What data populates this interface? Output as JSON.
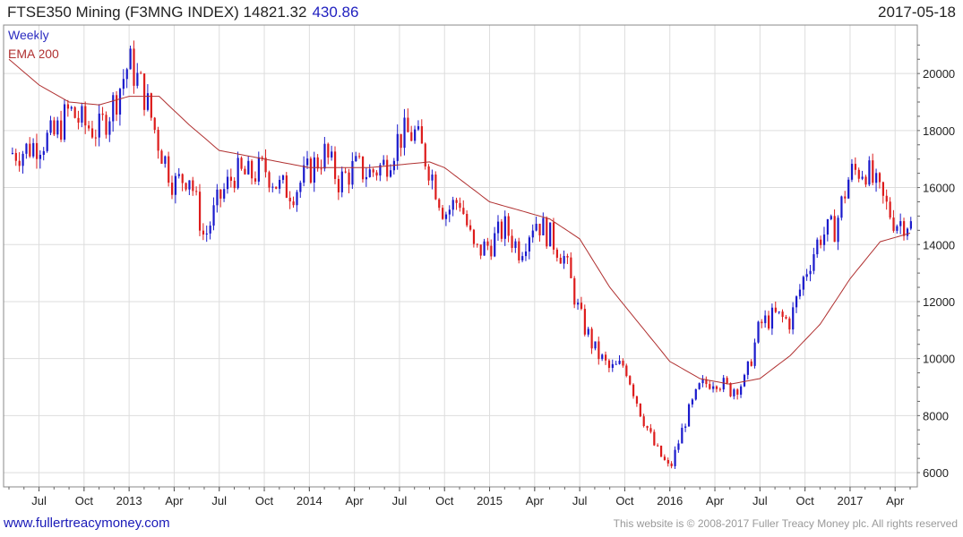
{
  "header": {
    "title": "FTSE350 Mining (F3MNG INDEX) 14821.32",
    "change": "430.86",
    "date": "2017-05-18"
  },
  "legend": [
    {
      "label": "Weekly",
      "color": "#2b2bc0"
    },
    {
      "label": "EMA 200",
      "color": "#b03030"
    }
  ],
  "footer": {
    "site": "www.fullertreacymoney.com",
    "copyright": "This website is © 2008-2017 Fuller Treacy Money plc. All rights reserved"
  },
  "colors": {
    "up": "#1a1acc",
    "down": "#dd1c1c",
    "ema": "#b03030",
    "grid": "#dddddd"
  },
  "chart_data": {
    "type": "candlestick",
    "frequency": "weekly",
    "y_ticks": [
      6000,
      8000,
      10000,
      12000,
      14000,
      16000,
      18000,
      20000
    ],
    "ylim": [
      5500,
      21700
    ],
    "x_ticks": [
      "Jul",
      "Oct",
      "2013",
      "Apr",
      "Jul",
      "Oct",
      "2014",
      "Apr",
      "Jul",
      "Oct",
      "2015",
      "Apr",
      "Jul",
      "Oct",
      "2016",
      "Apr",
      "Jul",
      "Oct",
      "2017",
      "Apr"
    ],
    "x_range": [
      "2012-05",
      "2017-05"
    ],
    "close_anchors": [
      [
        "2012-05",
        17200
      ],
      [
        "2012-06",
        17300
      ],
      [
        "2012-07",
        17600
      ],
      [
        "2012-08",
        17800
      ],
      [
        "2012-09",
        18700
      ],
      [
        "2012-10",
        18200
      ],
      [
        "2012-11",
        18000
      ],
      [
        "2012-12",
        19000
      ],
      [
        "2013-01",
        20400
      ],
      [
        "2013-02",
        19300
      ],
      [
        "2013-03",
        17500
      ],
      [
        "2013-04",
        16100
      ],
      [
        "2013-05",
        16500
      ],
      [
        "2013-06",
        14200
      ],
      [
        "2013-07",
        15600
      ],
      [
        "2013-08",
        16500
      ],
      [
        "2013-09",
        16400
      ],
      [
        "2013-10",
        16700
      ],
      [
        "2013-11",
        16000
      ],
      [
        "2013-12",
        15900
      ],
      [
        "2014-01",
        16600
      ],
      [
        "2014-02",
        17200
      ],
      [
        "2014-03",
        16200
      ],
      [
        "2014-04",
        16700
      ],
      [
        "2014-05",
        16500
      ],
      [
        "2014-06",
        16800
      ],
      [
        "2014-07",
        17800
      ],
      [
        "2014-08",
        17900
      ],
      [
        "2014-09",
        16700
      ],
      [
        "2014-10",
        15100
      ],
      [
        "2014-11",
        15600
      ],
      [
        "2014-12",
        13700
      ],
      [
        "2015-01",
        14000
      ],
      [
        "2015-02",
        14600
      ],
      [
        "2015-03",
        13800
      ],
      [
        "2015-04",
        14900
      ],
      [
        "2015-05",
        14300
      ],
      [
        "2015-06",
        13500
      ],
      [
        "2015-07",
        11500
      ],
      [
        "2015-08",
        10300
      ],
      [
        "2015-09",
        9600
      ],
      [
        "2015-10",
        9800
      ],
      [
        "2015-11",
        8200
      ],
      [
        "2015-12",
        6900
      ],
      [
        "2016-01",
        6100
      ],
      [
        "2016-02",
        7800
      ],
      [
        "2016-03",
        9000
      ],
      [
        "2016-04",
        9300
      ],
      [
        "2016-05",
        8900
      ],
      [
        "2016-06",
        9200
      ],
      [
        "2016-07",
        11200
      ],
      [
        "2016-08",
        11500
      ],
      [
        "2016-09",
        11300
      ],
      [
        "2016-10",
        13000
      ],
      [
        "2016-11",
        14300
      ],
      [
        "2016-12",
        14600
      ],
      [
        "2017-01",
        16500
      ],
      [
        "2017-02",
        16700
      ],
      [
        "2017-03",
        15700
      ],
      [
        "2017-04",
        14800
      ],
      [
        "2017-05",
        14820
      ]
    ],
    "ema_label": "EMA 200",
    "ema_anchors": [
      [
        "2012-05",
        20500
      ],
      [
        "2012-07",
        19600
      ],
      [
        "2012-09",
        19000
      ],
      [
        "2012-11",
        18900
      ],
      [
        "2013-01",
        19200
      ],
      [
        "2013-03",
        19200
      ],
      [
        "2013-05",
        18200
      ],
      [
        "2013-07",
        17300
      ],
      [
        "2013-09",
        17100
      ],
      [
        "2013-11",
        16900
      ],
      [
        "2014-01",
        16700
      ],
      [
        "2014-03",
        16700
      ],
      [
        "2014-05",
        16700
      ],
      [
        "2014-07",
        16800
      ],
      [
        "2014-09",
        16900
      ],
      [
        "2014-10",
        16700
      ],
      [
        "2015-01",
        15500
      ],
      [
        "2015-03",
        15200
      ],
      [
        "2015-05",
        14900
      ],
      [
        "2015-07",
        14200
      ],
      [
        "2015-09",
        12500
      ],
      [
        "2015-11",
        11200
      ],
      [
        "2016-01",
        9900
      ],
      [
        "2016-03",
        9300
      ],
      [
        "2016-05",
        9100
      ],
      [
        "2016-07",
        9300
      ],
      [
        "2016-09",
        10100
      ],
      [
        "2016-11",
        11200
      ],
      [
        "2017-01",
        12800
      ],
      [
        "2017-03",
        14100
      ],
      [
        "2017-05",
        14400
      ]
    ]
  }
}
